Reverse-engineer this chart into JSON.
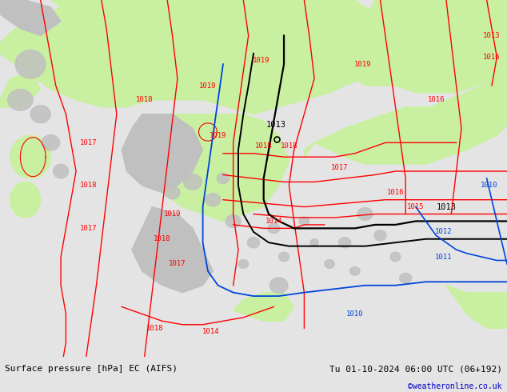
{
  "title_left": "Surface pressure [hPa] EC (AIFS)",
  "title_right": "Tu 01-10-2024 06:00 UTC (06+192)",
  "credit": "©weatheronline.co.uk",
  "bg_color": "#e4e4e4",
  "sea_color": "#d8d8d8",
  "green_color": "#c8f0a0",
  "land_color": "#c0c0c0",
  "red_color": "#ff0000",
  "black_color": "#000000",
  "blue_color": "#0044dd",
  "credit_color": "#0000cc",
  "fig_width": 6.34,
  "fig_height": 4.9,
  "dpi": 100,
  "label_fs": 6.5,
  "title_fs": 8.0
}
